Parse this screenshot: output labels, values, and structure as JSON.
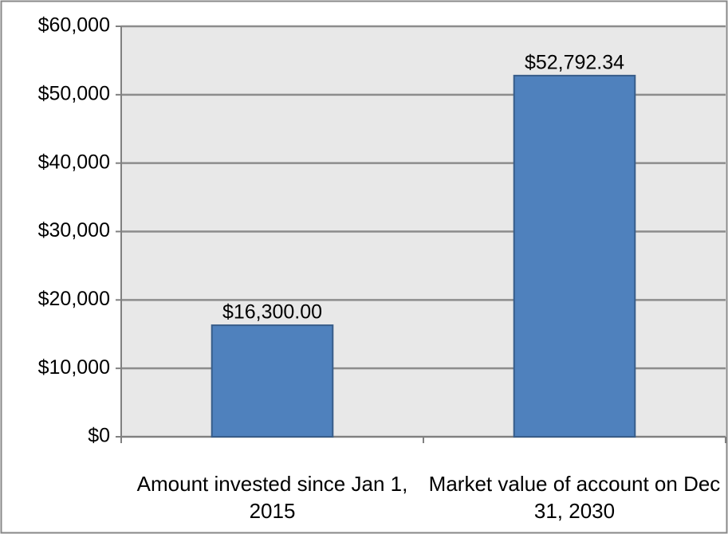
{
  "chart_data": {
    "type": "bar",
    "categories": [
      "Amount invested since Jan 1, 2015",
      "Market value of account on Dec 31, 2030"
    ],
    "values": [
      16300,
      52792.34
    ],
    "value_labels": [
      "$16,300.00",
      "$52,792.34"
    ],
    "color": "#4f81bd",
    "ylim": [
      0,
      60000
    ],
    "yticks": [
      {
        "value": 0,
        "label": "$0"
      },
      {
        "value": 10000,
        "label": "$10,000"
      },
      {
        "value": 20000,
        "label": "$20,000"
      },
      {
        "value": 30000,
        "label": "$30,000"
      },
      {
        "value": 40000,
        "label": "$40,000"
      },
      {
        "value": 50000,
        "label": "$50,000"
      },
      {
        "value": 60000,
        "label": "$60,000"
      }
    ],
    "grid": true
  }
}
